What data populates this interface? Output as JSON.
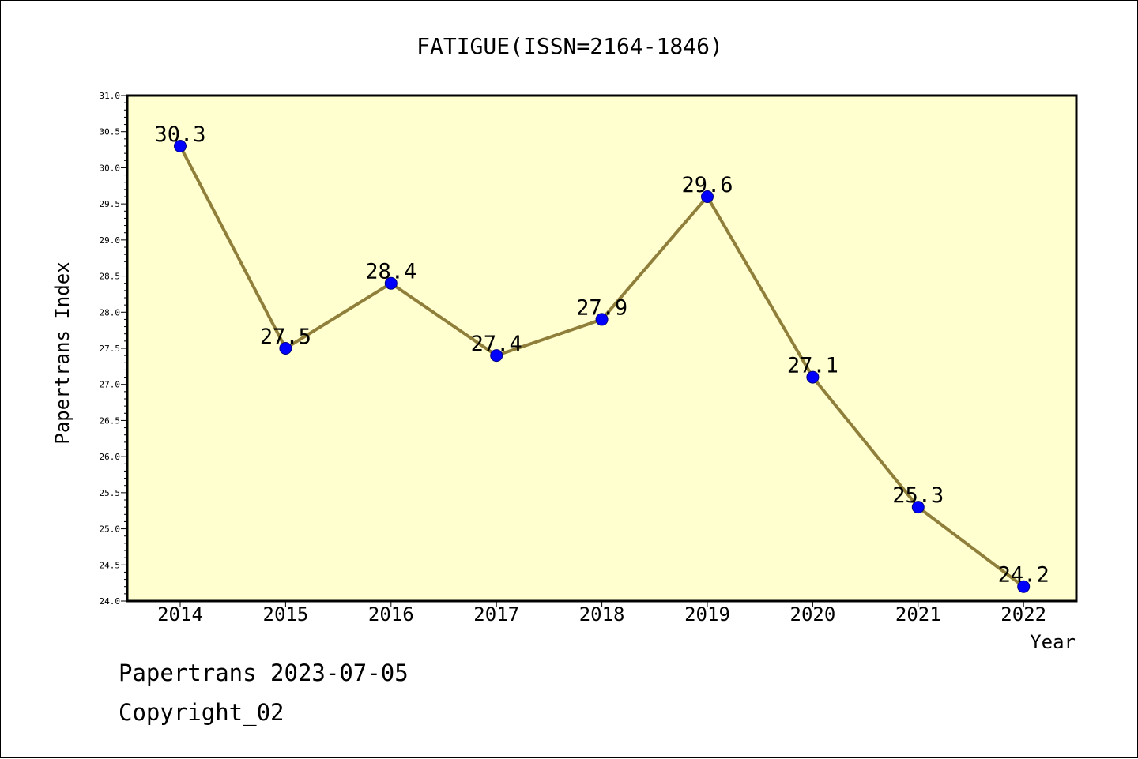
{
  "chart_data": {
    "type": "line",
    "title": "FATIGUE(ISSN=2164-1846)",
    "xlabel": "Year",
    "ylabel": "Papertrans Index",
    "categories": [
      "2014",
      "2015",
      "2016",
      "2017",
      "2018",
      "2019",
      "2020",
      "2021",
      "2022"
    ],
    "series": [
      {
        "values": [
          30.3,
          27.5,
          28.4,
          27.4,
          27.9,
          29.6,
          27.1,
          25.3,
          24.2
        ]
      }
    ],
    "data_labels": [
      "30.3",
      "27.5",
      "28.4",
      "27.4",
      "27.9",
      "29.6",
      "27.1",
      "25.3",
      "24.2"
    ],
    "ylim": [
      24.0,
      31.0
    ],
    "yticks": [
      "24.0",
      "24.5",
      "25.0",
      "25.5",
      "26.0",
      "26.5",
      "27.0",
      "27.5",
      "28.0",
      "28.5",
      "29.0",
      "29.5",
      "30.0",
      "30.5",
      "31.0"
    ],
    "grid": false,
    "colors": {
      "plot_background": "#ffffd0",
      "line": "#8f7f3a",
      "marker_fill": "#0000ff",
      "marker_edge": "#000080"
    }
  },
  "footer": {
    "line1": "Papertrans 2023-07-05",
    "line2": "Copyright_02"
  }
}
